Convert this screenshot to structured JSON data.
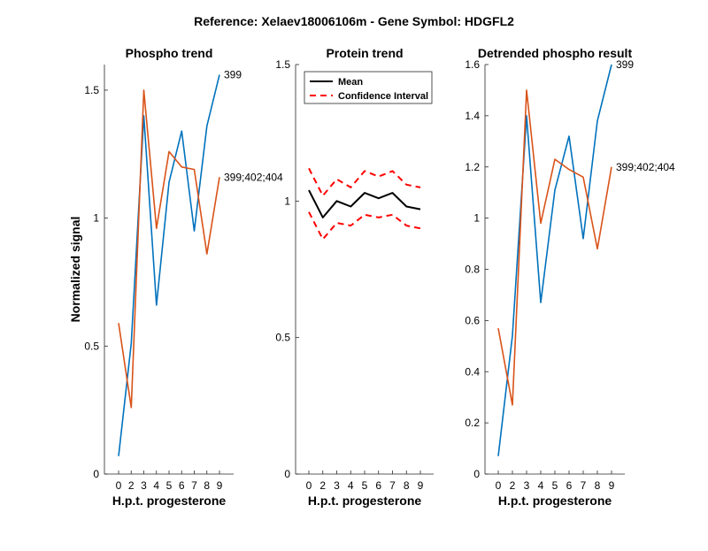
{
  "figure": {
    "title": "Reference:  Xelaev18006106m - Gene Symbol:  HDGFL2",
    "colors": {
      "blue": "#0072BD",
      "orange": "#D95319",
      "black": "#000000",
      "red": "#FF0000"
    }
  },
  "chart_data": [
    {
      "type": "line",
      "title": "Phospho trend",
      "xlabel": "H.p.t. progesterone",
      "ylabel": "Normalized signal",
      "x": [
        0,
        2,
        3,
        4,
        5,
        6,
        7,
        8,
        9
      ],
      "x_ticks": [
        "0",
        "2",
        "3",
        "4",
        "5",
        "6",
        "7",
        "8",
        "9"
      ],
      "ylim": [
        0,
        1.6
      ],
      "y_ticks": [
        0,
        0.5,
        1,
        1.5
      ],
      "y_tick_labels": [
        "0",
        "0.5",
        "1",
        "1.5"
      ],
      "series": [
        {
          "name": "399",
          "color": "#0072BD",
          "values": [
            0.07,
            0.51,
            1.4,
            0.66,
            1.14,
            1.34,
            0.95,
            1.36,
            1.56
          ]
        },
        {
          "name": "399;402;404",
          "color": "#D95319",
          "values": [
            0.59,
            0.26,
            1.5,
            0.96,
            1.26,
            1.2,
            1.19,
            0.86,
            1.16
          ]
        }
      ]
    },
    {
      "type": "line",
      "title": "Protein trend",
      "xlabel": "H.p.t. progesterone",
      "ylabel": "",
      "x": [
        0,
        2,
        3,
        4,
        5,
        6,
        7,
        8,
        9
      ],
      "x_ticks": [
        "0",
        "2",
        "3",
        "4",
        "5",
        "6",
        "7",
        "8",
        "9"
      ],
      "ylim": [
        0,
        1.5
      ],
      "y_ticks": [
        0,
        0.5,
        1,
        1.5
      ],
      "y_tick_labels": [
        "0",
        "0.5",
        "1",
        "1.5"
      ],
      "legend": {
        "position": "top-left",
        "entries": [
          "Mean",
          "Confidence Interval"
        ]
      },
      "series": [
        {
          "name": "Mean",
          "color": "#000000",
          "style": "solid",
          "values": [
            1.04,
            0.94,
            1.0,
            0.98,
            1.03,
            1.01,
            1.03,
            0.98,
            0.97
          ]
        },
        {
          "name": "Confidence Interval",
          "color": "#FF0000",
          "style": "dashed",
          "values": [
            1.12,
            1.02,
            1.08,
            1.05,
            1.11,
            1.09,
            1.11,
            1.06,
            1.05
          ]
        },
        {
          "name": "Confidence Interval",
          "color": "#FF0000",
          "style": "dashed",
          "values": [
            0.96,
            0.86,
            0.92,
            0.91,
            0.95,
            0.94,
            0.95,
            0.91,
            0.9
          ]
        }
      ]
    },
    {
      "type": "line",
      "title": "Detrended phospho result",
      "xlabel": "H.p.t. progesterone",
      "ylabel": "",
      "x": [
        0,
        2,
        3,
        4,
        5,
        6,
        7,
        8,
        9
      ],
      "x_ticks": [
        "0",
        "2",
        "3",
        "4",
        "5",
        "6",
        "7",
        "8",
        "9"
      ],
      "ylim": [
        0,
        1.6
      ],
      "y_ticks": [
        0,
        0.2,
        0.4,
        0.6,
        0.8,
        1,
        1.2,
        1.4,
        1.6
      ],
      "y_tick_labels": [
        "0",
        "0.2",
        "0.4",
        "0.6",
        "0.8",
        "1",
        "1.2",
        "1.4",
        "1.6"
      ],
      "series": [
        {
          "name": "399",
          "color": "#0072BD",
          "values": [
            0.07,
            0.54,
            1.4,
            0.67,
            1.11,
            1.32,
            0.92,
            1.38,
            1.6
          ]
        },
        {
          "name": "399;402;404",
          "color": "#D95319",
          "values": [
            0.57,
            0.27,
            1.5,
            0.98,
            1.23,
            1.19,
            1.16,
            0.88,
            1.2
          ]
        }
      ]
    }
  ]
}
